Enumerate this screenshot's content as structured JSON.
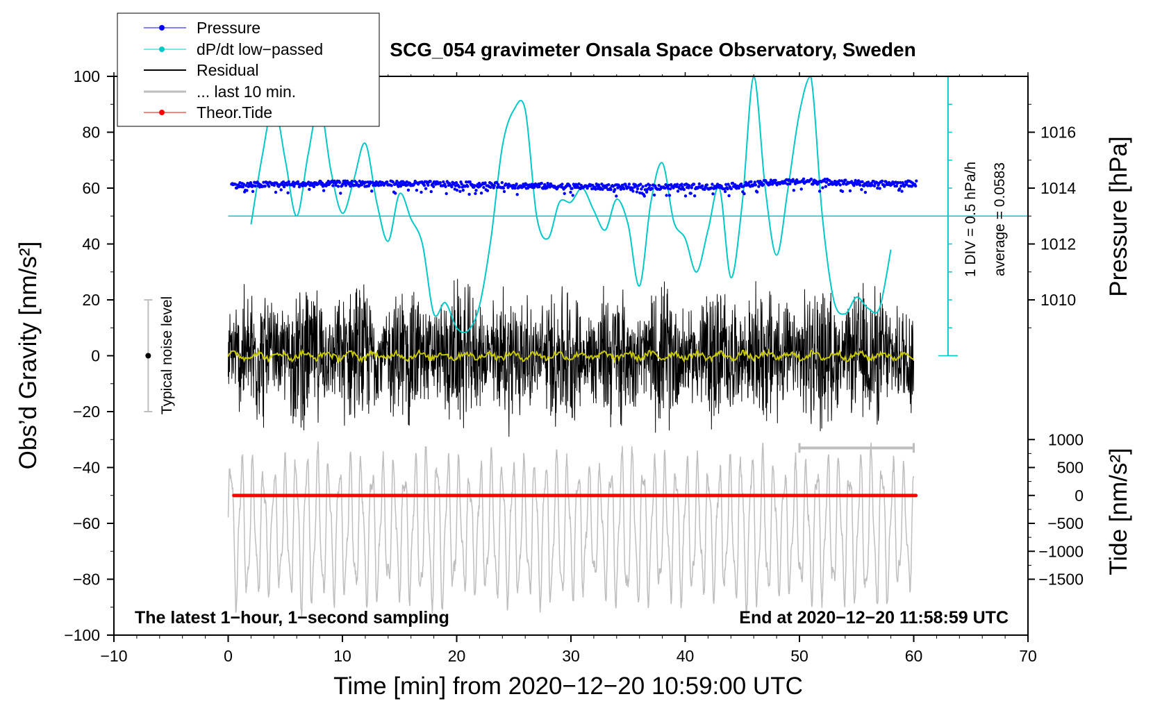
{
  "chart_data": {
    "type": "line",
    "title": "SCG_054 gravimeter Onsala Space Observatory, Sweden",
    "xlabel": "Time [min] from 2020−12−20 10:59:00 UTC",
    "ylabel_left": "Obs’d Gravity [nm/s²]",
    "ylabel_right_top": "Pressure [hPa]",
    "ylabel_right_bottom": "Tide [nm/s²]",
    "xlim": [
      -10,
      70
    ],
    "ylim": [
      -100,
      100
    ],
    "x_ticks": [
      -10,
      0,
      10,
      20,
      30,
      40,
      50,
      60,
      70
    ],
    "x_tick_labels": [
      "−10",
      "0",
      "10",
      "20",
      "30",
      "40",
      "50",
      "60",
      "70"
    ],
    "y_ticks": [
      -100,
      -80,
      -60,
      -40,
      -20,
      0,
      20,
      40,
      60,
      80,
      100
    ],
    "y_tick_labels": [
      "−100",
      "−80",
      "−60",
      "−40",
      "−20",
      "0",
      "20",
      "40",
      "60",
      "80",
      "100"
    ],
    "pressure_axis": {
      "ticks": [
        1010,
        1012,
        1014,
        1016
      ],
      "labels": [
        "1010",
        "1012",
        "1014",
        "1016"
      ],
      "gravity_at_1014": 60,
      "units_per_hPa": 10
    },
    "tide_axis": {
      "ticks": [
        -1500,
        -1000,
        -500,
        0,
        500,
        1000
      ],
      "labels": [
        "−1500",
        "−1000",
        "−500",
        "0",
        "500",
        "1000"
      ],
      "gravity_at_zero": -50,
      "units_per_nm": 0.02
    },
    "legend": {
      "placement": "top-left",
      "entries": [
        {
          "label": "Pressure",
          "color": "#0000ff",
          "marker": "dot"
        },
        {
          "label": "dP/dt low−passed",
          "color": "#00c8c8",
          "marker": "dot"
        },
        {
          "label": "Residual",
          "color": "#000000",
          "marker": "line"
        },
        {
          "label": "... last 10 min.",
          "color": "#bebebe",
          "marker": "line"
        },
        {
          "label": "Theor.Tide",
          "color": "#ff0000",
          "marker": "dot"
        }
      ]
    },
    "series": [
      {
        "name": "Pressure",
        "color": "#0000ff",
        "x_range": [
          0.3,
          60.3
        ],
        "y_center": 61,
        "y_spread": 2
      },
      {
        "name": "dP/dt low−passed",
        "color": "#00c8c8",
        "x": [
          2,
          3,
          4,
          5,
          6,
          7,
          8,
          9,
          10,
          11,
          12,
          13,
          14,
          15,
          16,
          17,
          18,
          19,
          20,
          21,
          22,
          23,
          24,
          25,
          26,
          27,
          28,
          29,
          30,
          31,
          32,
          33,
          34,
          35,
          36,
          37,
          38,
          39,
          40,
          41,
          42,
          43,
          44,
          45,
          46,
          47,
          48,
          49,
          50,
          51,
          52,
          53,
          54,
          55,
          56,
          57,
          58
        ],
        "y": [
          47,
          72,
          90,
          70,
          50,
          72,
          90,
          66,
          51,
          63,
          76,
          55,
          41,
          58,
          49,
          40,
          15,
          19,
          10,
          9,
          18,
          42,
          75,
          88,
          88,
          50,
          42,
          55,
          55,
          60,
          52,
          45,
          56,
          47,
          25,
          55,
          69,
          48,
          42,
          30,
          45,
          60,
          28,
          55,
          100,
          60,
          36,
          60,
          87,
          100,
          50,
          20,
          15,
          21,
          17,
          17,
          38
        ]
      },
      {
        "name": "Residual",
        "color": "#000000",
        "x_range": [
          0,
          60
        ],
        "y_amplitude": 30
      },
      {
        "name": "Residual (smoothed)",
        "color": "#c8c800",
        "x_range": [
          0,
          60
        ],
        "y_center": 0,
        "y_amplitude": 2
      },
      {
        "name": "... last 10 min.",
        "color": "#bebebe",
        "x_range": [
          0,
          60
        ],
        "y_center": -62,
        "y_amplitude": 25
      },
      {
        "name": "Theor.Tide",
        "color": "#ff0000",
        "x_range": [
          0.5,
          60.3
        ],
        "y": -50
      }
    ],
    "reference_lines": [
      {
        "name": "dP/dt zero line",
        "y": 50,
        "x_range": [
          0,
          70
        ],
        "color": "#00c8c8"
      }
    ],
    "dpdt_scale_bar": {
      "x": 63,
      "y_range": [
        0,
        100
      ],
      "divisions": 10,
      "label": "1 DIV = 0.5 hPa/h",
      "average_label": "average = 0.0583"
    },
    "last10_marker": {
      "x_range": [
        50,
        60
      ],
      "y": -33
    },
    "noise_bar": {
      "x": -7,
      "y_center": 0,
      "y_range": [
        -20,
        20
      ],
      "label": "Typical noise level"
    },
    "annotations": {
      "bottom_left": "The latest 1−hour, 1−second sampling",
      "bottom_right": "End at 2020−12−20 11:58:59 UTC"
    }
  }
}
